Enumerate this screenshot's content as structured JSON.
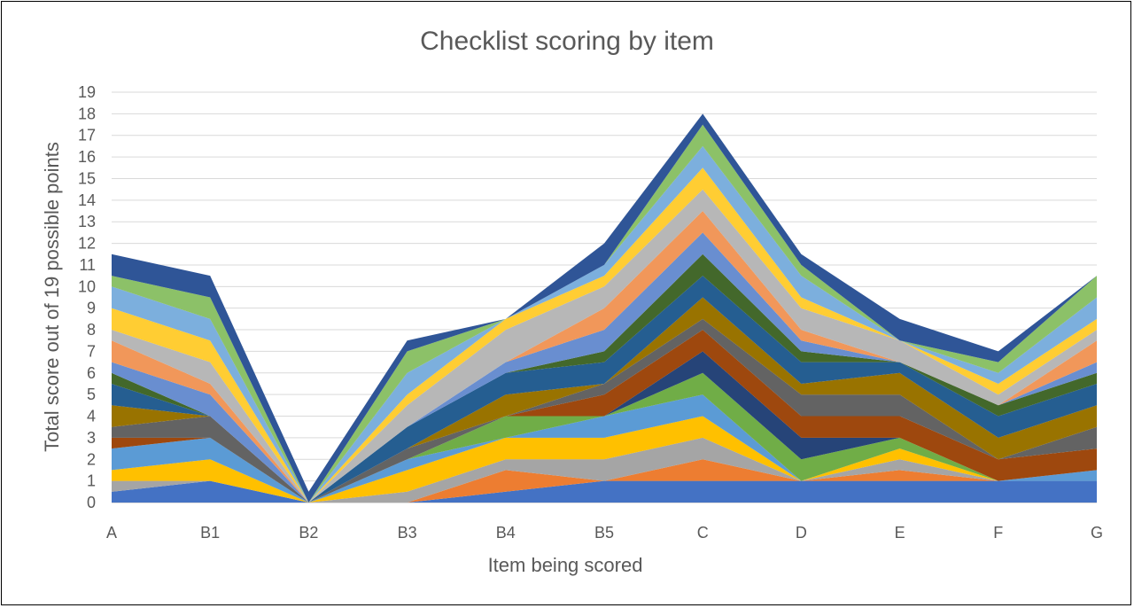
{
  "chart_data": {
    "type": "area",
    "stacked": true,
    "title": "Checklist scoring by item",
    "xlabel": "Item being scored",
    "ylabel": "Total score out of 19 possible points",
    "categories": [
      "A",
      "B1",
      "B2",
      "B3",
      "B4",
      "B5",
      "C",
      "D",
      "E",
      "F",
      "G"
    ],
    "ylim": [
      0,
      19
    ],
    "yticks": [
      0,
      1,
      2,
      3,
      4,
      5,
      6,
      7,
      8,
      9,
      10,
      11,
      12,
      13,
      14,
      15,
      16,
      17,
      18,
      19
    ],
    "grid": true,
    "legend": "none",
    "series": [
      {
        "color": "#4472C4",
        "values": [
          0.5,
          1.0,
          0.0,
          0.0,
          0.5,
          1.0,
          1.0,
          1.0,
          1.0,
          1.0,
          1.0
        ]
      },
      {
        "color": "#ED7D31",
        "values": [
          0.0,
          0.0,
          0.0,
          0.0,
          1.0,
          0.0,
          1.0,
          0.0,
          0.5,
          0.0,
          0.0
        ]
      },
      {
        "color": "#A5A5A5",
        "values": [
          0.5,
          0.0,
          0.0,
          0.5,
          0.5,
          1.0,
          1.0,
          0.0,
          0.5,
          0.0,
          0.0
        ]
      },
      {
        "color": "#FFC000",
        "values": [
          0.5,
          1.0,
          0.0,
          1.0,
          1.0,
          1.0,
          1.0,
          0.0,
          0.5,
          0.0,
          0.0
        ]
      },
      {
        "color": "#5B9BD5",
        "values": [
          1.0,
          1.0,
          0.0,
          0.5,
          0.0,
          1.0,
          1.0,
          0.0,
          0.0,
          0.0,
          0.5
        ]
      },
      {
        "color": "#70AD47",
        "values": [
          0.0,
          0.0,
          0.0,
          0.0,
          1.0,
          0.0,
          1.0,
          1.0,
          0.5,
          0.0,
          0.0
        ]
      },
      {
        "color": "#264478",
        "values": [
          0.0,
          0.0,
          0.0,
          0.0,
          0.0,
          0.0,
          1.0,
          1.0,
          0.0,
          0.0,
          0.0
        ]
      },
      {
        "color": "#9E480E",
        "values": [
          0.5,
          0.0,
          0.0,
          0.0,
          0.0,
          1.0,
          1.0,
          1.0,
          1.0,
          1.0,
          1.0
        ]
      },
      {
        "color": "#636363",
        "values": [
          0.5,
          1.0,
          0.0,
          0.5,
          0.0,
          0.5,
          0.5,
          1.0,
          1.0,
          0.0,
          1.0
        ]
      },
      {
        "color": "#997300",
        "values": [
          1.0,
          0.0,
          0.0,
          0.0,
          1.0,
          0.0,
          1.0,
          0.5,
          1.0,
          1.0,
          1.0
        ]
      },
      {
        "color": "#255E91",
        "values": [
          1.0,
          0.0,
          0.0,
          1.0,
          1.0,
          1.0,
          1.0,
          1.0,
          0.5,
          1.0,
          1.0
        ]
      },
      {
        "color": "#43682B",
        "values": [
          0.5,
          0.0,
          0.0,
          0.0,
          0.0,
          0.5,
          1.0,
          0.5,
          0.0,
          0.5,
          0.5
        ]
      },
      {
        "color": "#698ED0",
        "values": [
          0.5,
          1.0,
          0.0,
          0.0,
          0.5,
          1.0,
          1.0,
          0.5,
          0.0,
          0.0,
          0.5
        ]
      },
      {
        "color": "#F1975A",
        "values": [
          1.0,
          0.5,
          0.0,
          0.0,
          0.0,
          1.0,
          1.0,
          0.5,
          0.0,
          0.0,
          1.0
        ]
      },
      {
        "color": "#B7B7B7",
        "values": [
          0.5,
          1.0,
          0.0,
          1.0,
          1.5,
          1.0,
          1.0,
          1.0,
          1.0,
          0.5,
          0.5
        ]
      },
      {
        "color": "#FFCD33",
        "values": [
          1.0,
          1.0,
          0.0,
          0.5,
          0.5,
          0.5,
          1.0,
          0.5,
          0.0,
          0.5,
          0.5
        ]
      },
      {
        "color": "#7CAFDD",
        "values": [
          1.0,
          1.0,
          0.0,
          1.0,
          0.0,
          0.5,
          1.0,
          1.0,
          0.0,
          0.5,
          1.0
        ]
      },
      {
        "color": "#8CC168",
        "values": [
          0.5,
          1.0,
          0.0,
          1.0,
          0.0,
          0.0,
          1.0,
          0.5,
          0.0,
          0.5,
          1.0
        ]
      },
      {
        "color": "#2F5597",
        "values": [
          1.0,
          1.0,
          0.5,
          0.5,
          0.0,
          1.0,
          0.5,
          0.5,
          1.0,
          0.5,
          0.0
        ]
      }
    ]
  }
}
